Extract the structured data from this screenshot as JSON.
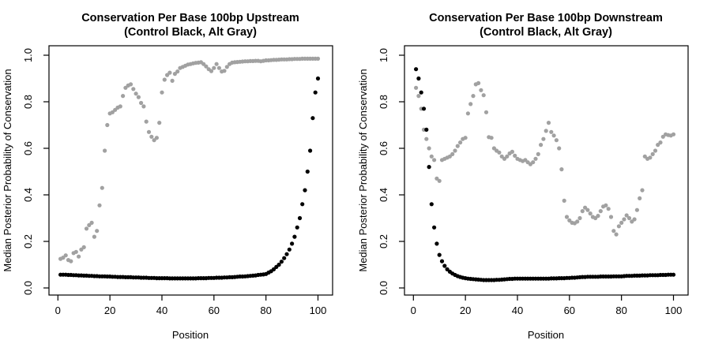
{
  "page": {
    "background": "#ffffff",
    "text_color": "#000000"
  },
  "chart_data": [
    {
      "type": "scatter",
      "title": "Conservation Per Base 100bp Upstream",
      "subtitle": "(Control Black, Alt Gray)",
      "xlabel": "Position",
      "ylabel": "Median Posterior Probability of Conservation",
      "xlim": [
        0,
        100
      ],
      "ylim": [
        0.0,
        1.0
      ],
      "grid": false,
      "legend_position": "none",
      "point_shape": "filled-circle",
      "x_ticks": [
        0,
        20,
        40,
        60,
        80,
        100
      ],
      "x_tick_labels": [
        "0",
        "20",
        "40",
        "60",
        "80",
        "100"
      ],
      "y_ticks": [
        0.0,
        0.2,
        0.4,
        0.6,
        0.8,
        1.0
      ],
      "y_tick_labels": [
        "0.0",
        "0.2",
        "0.4",
        "0.6",
        "0.8",
        "1.0"
      ],
      "x_range": {
        "from": 1,
        "to": 100,
        "step": 1
      },
      "series": [
        {
          "name": "Control (black)",
          "color": "#000000",
          "values": [
            0.057,
            0.057,
            0.057,
            0.056,
            0.056,
            0.055,
            0.055,
            0.054,
            0.054,
            0.053,
            0.053,
            0.052,
            0.052,
            0.051,
            0.051,
            0.05,
            0.05,
            0.05,
            0.049,
            0.049,
            0.048,
            0.048,
            0.047,
            0.047,
            0.047,
            0.046,
            0.046,
            0.046,
            0.045,
            0.045,
            0.045,
            0.044,
            0.044,
            0.044,
            0.043,
            0.043,
            0.043,
            0.042,
            0.042,
            0.042,
            0.042,
            0.042,
            0.041,
            0.041,
            0.041,
            0.041,
            0.041,
            0.041,
            0.041,
            0.041,
            0.041,
            0.041,
            0.041,
            0.042,
            0.042,
            0.042,
            0.042,
            0.043,
            0.043,
            0.043,
            0.044,
            0.044,
            0.044,
            0.045,
            0.045,
            0.046,
            0.046,
            0.047,
            0.048,
            0.049,
            0.049,
            0.05,
            0.051,
            0.052,
            0.053,
            0.054,
            0.056,
            0.057,
            0.058,
            0.06,
            0.066,
            0.072,
            0.08,
            0.09,
            0.1,
            0.113,
            0.128,
            0.145,
            0.165,
            0.19,
            0.22,
            0.26,
            0.3,
            0.36,
            0.42,
            0.5,
            0.59,
            0.73,
            0.84,
            0.9
          ]
        },
        {
          "name": "Alt (gray)",
          "color": "#a1a1a1",
          "values": [
            0.125,
            0.13,
            0.14,
            0.12,
            0.115,
            0.15,
            0.155,
            0.135,
            0.165,
            0.175,
            0.255,
            0.27,
            0.28,
            0.22,
            0.245,
            0.355,
            0.43,
            0.59,
            0.7,
            0.75,
            0.755,
            0.765,
            0.775,
            0.78,
            0.825,
            0.86,
            0.87,
            0.875,
            0.855,
            0.835,
            0.82,
            0.795,
            0.78,
            0.715,
            0.67,
            0.65,
            0.635,
            0.645,
            0.71,
            0.84,
            0.895,
            0.915,
            0.925,
            0.89,
            0.92,
            0.93,
            0.945,
            0.95,
            0.955,
            0.96,
            0.962,
            0.965,
            0.967,
            0.968,
            0.97,
            0.962,
            0.952,
            0.94,
            0.932,
            0.945,
            0.962,
            0.945,
            0.93,
            0.933,
            0.95,
            0.962,
            0.968,
            0.97,
            0.971,
            0.972,
            0.973,
            0.974,
            0.974,
            0.975,
            0.975,
            0.976,
            0.976,
            0.974,
            0.976,
            0.978,
            0.978,
            0.979,
            0.98,
            0.98,
            0.981,
            0.982,
            0.982,
            0.982,
            0.983,
            0.983,
            0.984,
            0.984,
            0.984,
            0.985,
            0.985,
            0.985,
            0.985,
            0.985,
            0.985,
            0.985
          ]
        }
      ]
    },
    {
      "type": "scatter",
      "title": "Conservation Per Base 100bp Downstream",
      "subtitle": "(Control Black, Alt Gray)",
      "xlabel": "Position",
      "ylabel": "Median Posterior Probability of Conservation",
      "xlim": [
        0,
        100
      ],
      "ylim": [
        0.0,
        1.0
      ],
      "grid": false,
      "legend_position": "none",
      "point_shape": "filled-circle",
      "x_ticks": [
        0,
        20,
        40,
        60,
        80,
        100
      ],
      "x_tick_labels": [
        "0",
        "20",
        "40",
        "60",
        "80",
        "100"
      ],
      "y_ticks": [
        0.0,
        0.2,
        0.4,
        0.6,
        0.8,
        1.0
      ],
      "y_tick_labels": [
        "0.0",
        "0.2",
        "0.4",
        "0.6",
        "0.8",
        "1.0"
      ],
      "x_range": {
        "from": 1,
        "to": 100,
        "step": 1
      },
      "series": [
        {
          "name": "Control (black)",
          "color": "#000000",
          "values": [
            0.94,
            0.9,
            0.84,
            0.77,
            0.68,
            0.52,
            0.36,
            0.26,
            0.19,
            0.142,
            0.115,
            0.095,
            0.08,
            0.07,
            0.062,
            0.056,
            0.051,
            0.047,
            0.044,
            0.042,
            0.04,
            0.039,
            0.038,
            0.037,
            0.036,
            0.035,
            0.034,
            0.034,
            0.034,
            0.034,
            0.034,
            0.035,
            0.035,
            0.036,
            0.037,
            0.038,
            0.039,
            0.039,
            0.04,
            0.04,
            0.04,
            0.04,
            0.04,
            0.04,
            0.04,
            0.04,
            0.04,
            0.04,
            0.04,
            0.04,
            0.04,
            0.04,
            0.041,
            0.041,
            0.041,
            0.042,
            0.042,
            0.042,
            0.043,
            0.043,
            0.044,
            0.044,
            0.045,
            0.046,
            0.047,
            0.047,
            0.048,
            0.048,
            0.048,
            0.048,
            0.048,
            0.049,
            0.049,
            0.049,
            0.049,
            0.049,
            0.05,
            0.05,
            0.05,
            0.05,
            0.051,
            0.052,
            0.052,
            0.052,
            0.053,
            0.053,
            0.053,
            0.054,
            0.054,
            0.054,
            0.055,
            0.055,
            0.055,
            0.055,
            0.056,
            0.056,
            0.056,
            0.057,
            0.057,
            0.057
          ]
        },
        {
          "name": "Alt (gray)",
          "color": "#a1a1a1",
          "values": [
            0.86,
            0.825,
            0.77,
            0.68,
            0.64,
            0.6,
            0.565,
            0.55,
            0.47,
            0.46,
            0.55,
            0.555,
            0.56,
            0.565,
            0.575,
            0.59,
            0.61,
            0.625,
            0.64,
            0.645,
            0.75,
            0.79,
            0.825,
            0.875,
            0.88,
            0.85,
            0.828,
            0.755,
            0.648,
            0.645,
            0.6,
            0.59,
            0.582,
            0.565,
            0.555,
            0.565,
            0.578,
            0.585,
            0.568,
            0.555,
            0.55,
            0.545,
            0.55,
            0.54,
            0.532,
            0.54,
            0.555,
            0.575,
            0.615,
            0.64,
            0.675,
            0.71,
            0.67,
            0.655,
            0.635,
            0.6,
            0.51,
            0.375,
            0.305,
            0.29,
            0.28,
            0.278,
            0.285,
            0.3,
            0.33,
            0.345,
            0.335,
            0.32,
            0.305,
            0.3,
            0.31,
            0.33,
            0.35,
            0.355,
            0.34,
            0.305,
            0.245,
            0.23,
            0.265,
            0.28,
            0.295,
            0.312,
            0.3,
            0.285,
            0.295,
            0.335,
            0.385,
            0.42,
            0.565,
            0.555,
            0.56,
            0.575,
            0.59,
            0.615,
            0.625,
            0.65,
            0.66,
            0.657,
            0.655,
            0.66
          ]
        }
      ]
    }
  ]
}
